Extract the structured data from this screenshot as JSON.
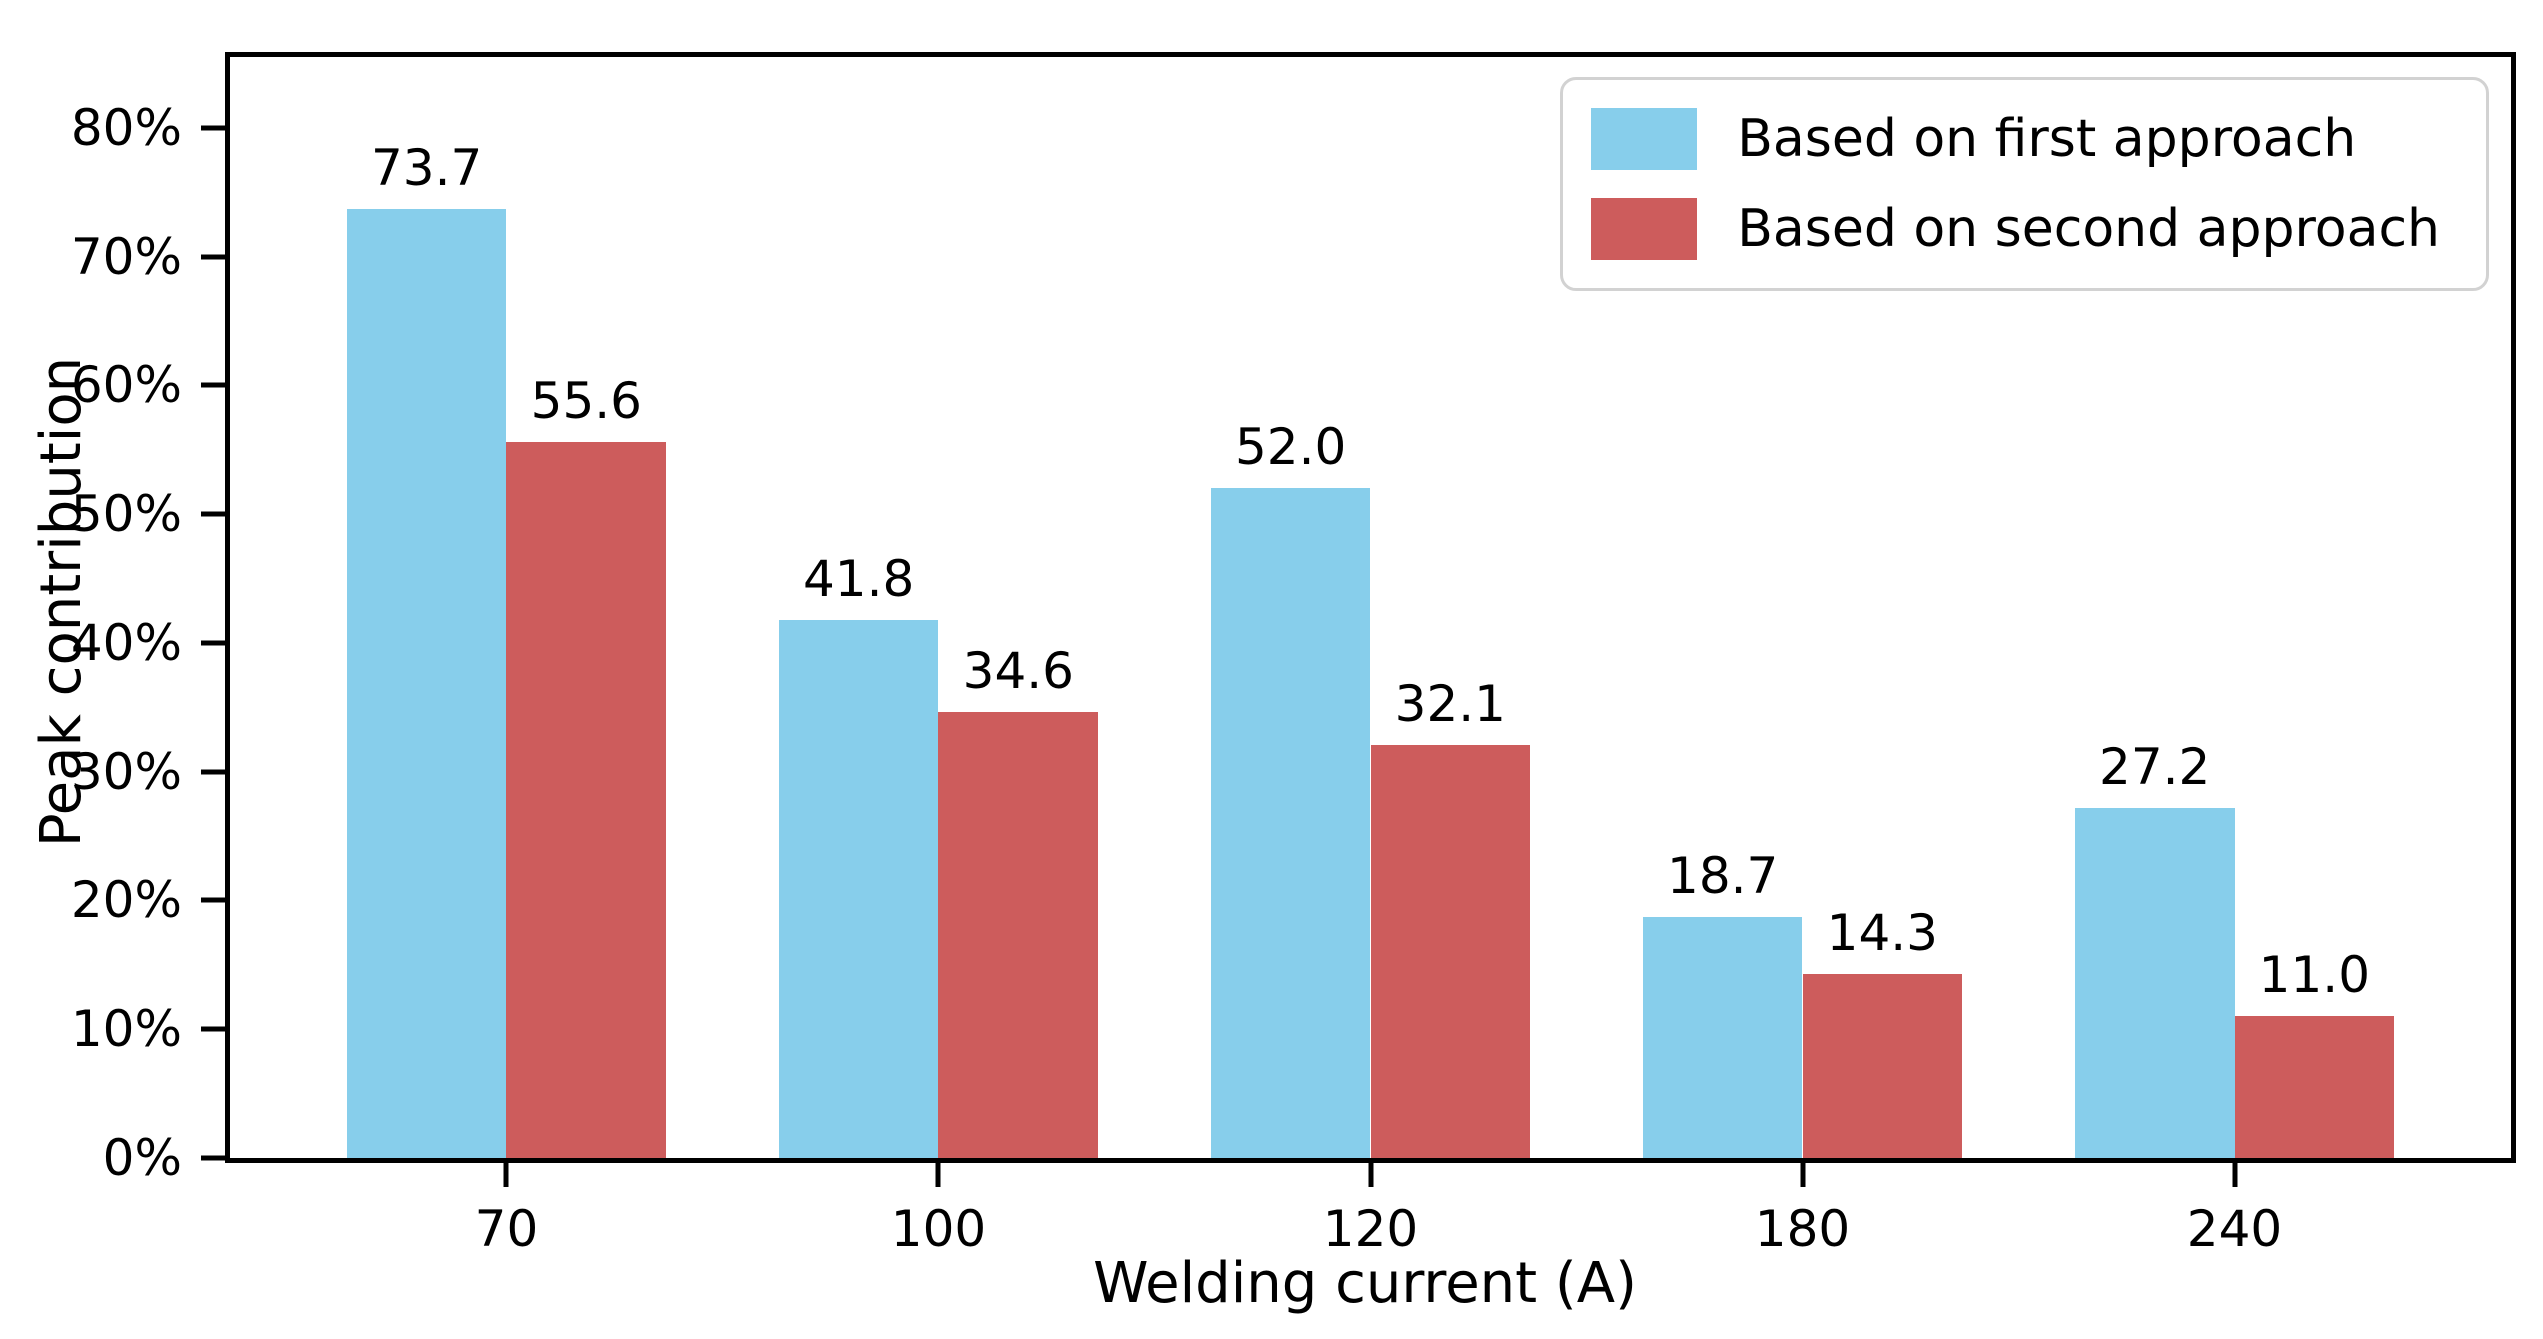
{
  "chart_data": {
    "type": "bar",
    "title": "",
    "xlabel": "Welding current (A)",
    "ylabel": "Peak contribution",
    "categories": [
      "70",
      "100",
      "120",
      "180",
      "240"
    ],
    "series": [
      {
        "name": "Based on first approach",
        "color": "#87CEEB",
        "values": [
          73.7,
          41.8,
          52.0,
          18.7,
          27.2
        ]
      },
      {
        "name": "Based on second approach",
        "color": "#CD5C5C",
        "values": [
          55.6,
          34.6,
          32.1,
          14.3,
          11.0
        ]
      }
    ],
    "value_label_decimals": 1,
    "ytick_values": [
      0,
      10,
      20,
      30,
      40,
      50,
      60,
      70,
      80
    ],
    "ytick_labels": [
      "0%",
      "10%",
      "20%",
      "30%",
      "40%",
      "50%",
      "60%",
      "70%",
      "80%"
    ],
    "ylim": [
      0,
      85.5
    ],
    "grid": false,
    "legend_position": "top-right",
    "colors": {
      "axis": "#000000",
      "background": "#ffffff",
      "legend_border": "#d2d2d2"
    }
  }
}
